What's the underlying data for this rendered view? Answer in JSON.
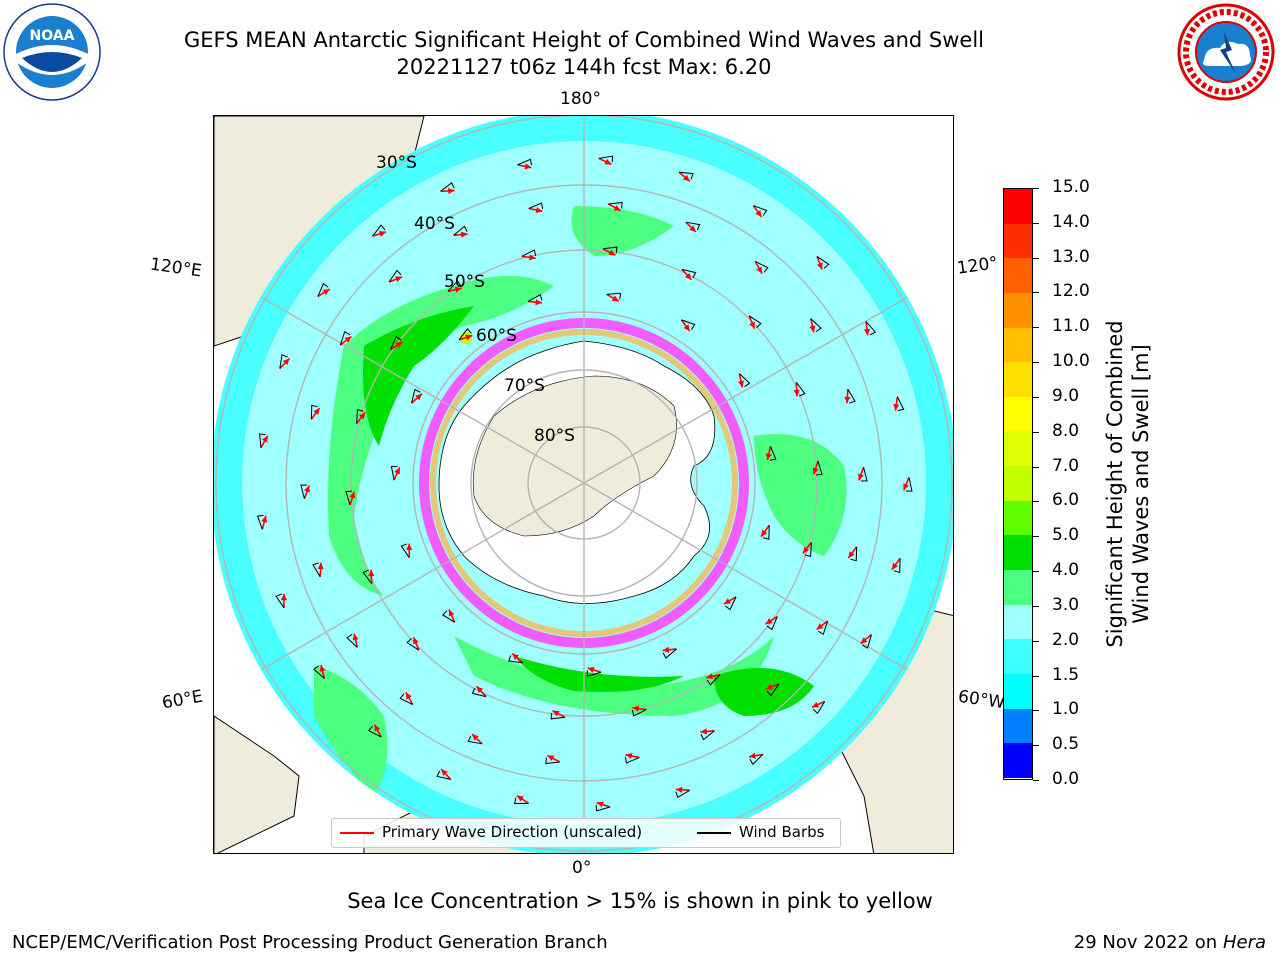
{
  "header": {
    "title_line1": "GEFS MEAN Antarctic Significant Height of Combined Wind Waves and Swell",
    "title_line2": "20221127 t06z 144h fcst   Max: 6.20"
  },
  "logos": {
    "noaa": {
      "text": "NOAA",
      "ring_text": "NATIONAL OCEANIC AND ATMOSPHERIC ADMINISTRATION · U.S. DEPARTMENT OF COMMERCE"
    },
    "nws": {
      "ring_text": "NATIONAL WEATHER SERVICE"
    }
  },
  "map": {
    "projection": "south-polar stereographic",
    "longitude_labels": {
      "top": "180°",
      "bottom": "0°",
      "left_upper": "120°E",
      "left_lower": "60°E",
      "right_upper": "120°",
      "right_lower": "60°W"
    },
    "latitude_labels": [
      "30°S",
      "40°S",
      "50°S",
      "60°S",
      "70°S",
      "80°S"
    ],
    "colors": {
      "land": "#efecdc",
      "ice_land": "#ffffff",
      "gridline": "#b4b4b4",
      "wave_arrow": "#ff0000",
      "wind_barb": "#000000"
    }
  },
  "colorbar": {
    "label_line1": "Significant Height of Combined",
    "label_line2": "Wind Waves and Swell [m]",
    "ticks": [
      "0.0",
      "0.5",
      "1.0",
      "1.5",
      "2.0",
      "3.0",
      "4.0",
      "5.0",
      "6.0",
      "7.0",
      "8.0",
      "9.0",
      "10.0",
      "11.0",
      "12.0",
      "13.0",
      "14.0",
      "15.0"
    ],
    "colors": [
      "#0000ff",
      "#0080ff",
      "#00ffff",
      "#40ffff",
      "#a0ffff",
      "#4dff80",
      "#00e000",
      "#60ff00",
      "#c0ff00",
      "#e0ff00",
      "#ffff00",
      "#ffe000",
      "#ffc000",
      "#ff9000",
      "#ff6000",
      "#ff3000",
      "#ff0000"
    ]
  },
  "legend": {
    "primary_wave": "Primary Wave Direction (unscaled)",
    "wind_barbs": "Wind Barbs"
  },
  "footer": {
    "sea_ice_note": "Sea Ice Concentration > 15% is shown in pink to yellow",
    "credit_left": "NCEP/EMC/Verification Post Processing Product Generation Branch",
    "credit_date": "29 Nov 2022 on",
    "credit_host": "Hera"
  }
}
